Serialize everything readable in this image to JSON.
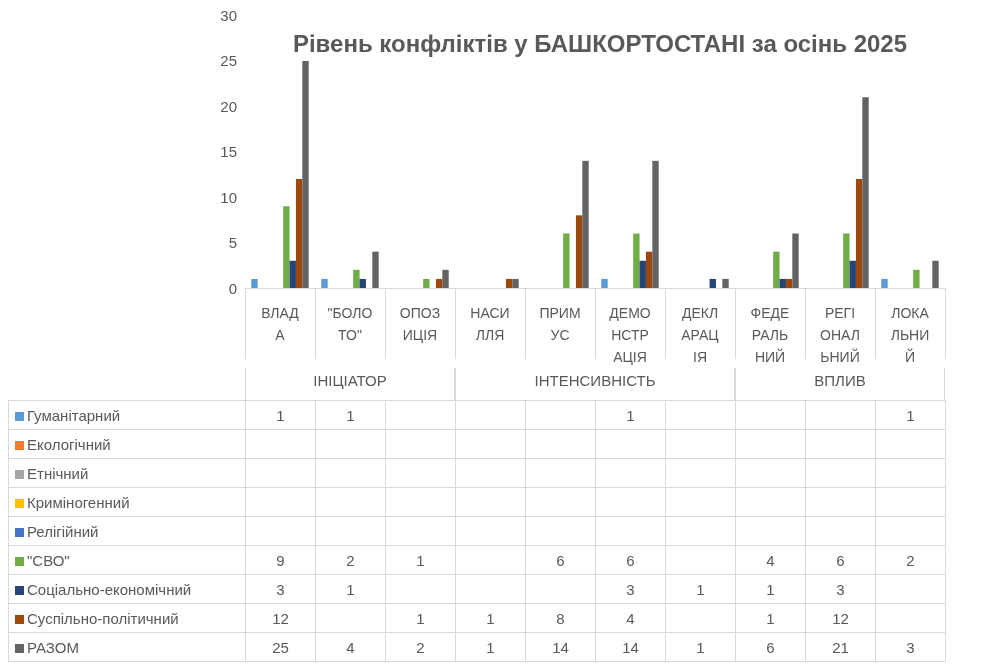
{
  "chart_data": {
    "type": "bar",
    "title": "Рівень конфліктів у БАШКОРТОСТАНІ за осінь 2025",
    "categories": [
      "ВЛАДА",
      "\"БОЛОТО\"",
      "ОПОЗИЦІЯ",
      "НАСИЛЛЯ",
      "ПРИМУС",
      "ДЕМОНСТРАЦІЯ",
      "ДЕКЛАРАЦІЯ",
      "ФЕДЕРАЛЬНИЙ",
      "РЕГІОНАЛЬНИЙ",
      "ЛОКАЛЬНИЙ"
    ],
    "annotations": [
      "ІНІЦІАТОР",
      "ІНТЕНСИВНІСТЬ",
      "ВПЛИВ"
    ],
    "series": [
      {
        "name": "Гуманітарний",
        "color": "#5b9bd5",
        "values": [
          1,
          1,
          null,
          null,
          null,
          1,
          null,
          null,
          null,
          1
        ]
      },
      {
        "name": "Екологічний",
        "color": "#ed7d31",
        "values": [
          null,
          null,
          null,
          null,
          null,
          null,
          null,
          null,
          null,
          null
        ]
      },
      {
        "name": "Етнічний",
        "color": "#a5a5a5",
        "values": [
          null,
          null,
          null,
          null,
          null,
          null,
          null,
          null,
          null,
          null
        ]
      },
      {
        "name": "Криміногенний",
        "color": "#ffc000",
        "values": [
          null,
          null,
          null,
          null,
          null,
          null,
          null,
          null,
          null,
          null
        ]
      },
      {
        "name": "Релігійний",
        "color": "#4472c4",
        "values": [
          null,
          null,
          null,
          null,
          null,
          null,
          null,
          null,
          null,
          null
        ]
      },
      {
        "name": "\"СВО\"",
        "color": "#70ad47",
        "values": [
          9,
          2,
          1,
          null,
          6,
          6,
          null,
          4,
          6,
          2
        ]
      },
      {
        "name": "Соціально-економічний",
        "color": "#264478",
        "values": [
          3,
          1,
          null,
          null,
          null,
          3,
          1,
          1,
          3,
          null
        ]
      },
      {
        "name": "Суспільно-політичний",
        "color": "#9e480e",
        "values": [
          12,
          null,
          1,
          1,
          8,
          4,
          null,
          1,
          12,
          null
        ]
      },
      {
        "name": "РАЗОМ",
        "color": "#636363",
        "values": [
          25,
          4,
          2,
          1,
          14,
          14,
          1,
          6,
          21,
          3
        ]
      }
    ],
    "ylim": [
      0,
      30
    ],
    "yticks": [
      0,
      5,
      10,
      15,
      20,
      25,
      30
    ],
    "grid": false,
    "legend": "bottom",
    "data_labels": true
  }
}
